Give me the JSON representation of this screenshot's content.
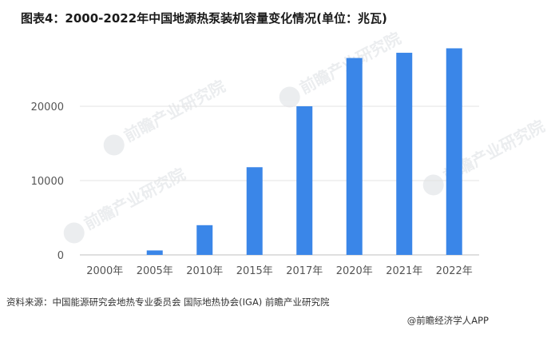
{
  "title": "图表4：2000-2022年中国地源热泵装机容量变化情况(单位：兆瓦)",
  "source": "资料来源：中国能源研究会地热专业委员会 国际地热协会(IGA) 前瞻产业研究院",
  "credit": "@前瞻经济学人APP",
  "watermark": "前瞻产业研究院",
  "colors": {
    "bar": "#3a86e8",
    "grid": "#e3e3e3",
    "axis": "#bfbfbf"
  },
  "chart_data": {
    "type": "bar",
    "title": "图表4：2000-2022年中国地源热泵装机容量变化情况(单位：兆瓦)",
    "xlabel": "",
    "ylabel": "",
    "categories": [
      "2000年",
      "2005年",
      "2010年",
      "2015年",
      "2017年",
      "2020年",
      "2021年",
      "2022年"
    ],
    "values": [
      0,
      600,
      4000,
      11800,
      20000,
      26500,
      27200,
      27800
    ],
    "yticks": [
      0,
      10000,
      20000
    ],
    "ylim": [
      0,
      30000
    ],
    "grid": true,
    "legend": "none"
  }
}
